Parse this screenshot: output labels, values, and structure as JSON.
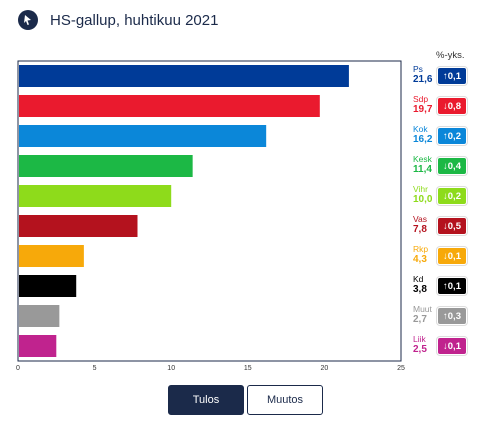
{
  "header": {
    "title": "HS-gallup, huhtikuu 2021"
  },
  "unit_label": "%-yks.",
  "tabs": {
    "result_label": "Tulos",
    "change_label": "Muutos"
  },
  "chart_data": {
    "type": "bar",
    "orientation": "horizontal",
    "categories": [
      "Ps",
      "Sdp",
      "Kok",
      "Kesk",
      "Vihr",
      "Vas",
      "Rkp",
      "Kd",
      "Muut",
      "Liik"
    ],
    "values": [
      21.6,
      19.7,
      16.2,
      11.4,
      10.0,
      7.8,
      4.3,
      3.8,
      2.7,
      2.5
    ],
    "value_labels": [
      "21,6",
      "19,7",
      "16,2",
      "11,4",
      "10,0",
      "7,8",
      "4,3",
      "3,8",
      "2,7",
      "2,5"
    ],
    "changes": [
      "↑0,1",
      "↓0,8",
      "↑0,2",
      "↓0,4",
      "↓0,2",
      "↓0,5",
      "↓0,1",
      "↑0,1",
      "↑0,3",
      "↓0,1"
    ],
    "colors": [
      "#003b98",
      "#ea1a2e",
      "#0b87d9",
      "#1cb845",
      "#8edb1b",
      "#b4121e",
      "#f7a90a",
      "#000000",
      "#999999",
      "#c0238e"
    ],
    "xlim": [
      0,
      25
    ],
    "xticks": [
      "0",
      "5",
      "10",
      "15",
      "20",
      "25"
    ],
    "grid": false,
    "xlabel": "",
    "ylabel": ""
  }
}
